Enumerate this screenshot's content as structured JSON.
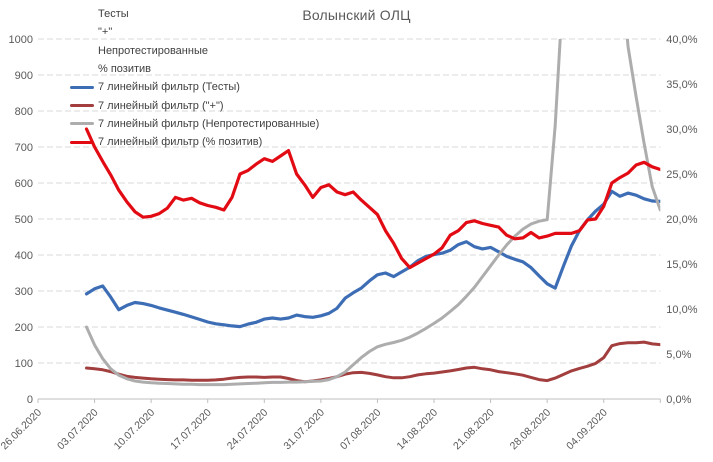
{
  "title": "Волынский ОЛЦ",
  "colors": {
    "gridline": "#d9d9d9",
    "axis_line": "#bfbfbf",
    "axis_text": "#595959",
    "legend_text": "#404040",
    "series_blue": "#3d6eb5",
    "series_darkred": "#a23f3e",
    "series_gray": "#adadad",
    "series_red": "#e30b13"
  },
  "legend": {
    "items": [
      {
        "label": "Тесты",
        "color": null
      },
      {
        "label": "\"+\"",
        "color": null
      },
      {
        "label": "Непротестированные",
        "color": null
      },
      {
        "label": "% позитив",
        "color": null
      },
      {
        "label": "7 линейный фильтр (Тесты)",
        "color": "#3d6eb5"
      },
      {
        "label": "7 линейный фильтр (\"+\")",
        "color": "#a23f3e"
      },
      {
        "label": "7 линейный фильтр (Непротестированные)",
        "color": "#adadad"
      },
      {
        "label": "7 линейный фильтр (% позитив)",
        "color": "#e30b13"
      }
    ]
  },
  "chart_data": {
    "type": "line",
    "title": "Волынский ОЛЦ",
    "grid": true,
    "legend_position": "top-left-inside",
    "x_tick_labels": [
      "26.06.2020",
      "03.07.2020",
      "10.07.2020",
      "17.07.2020",
      "24.07.2020",
      "31.07.2020",
      "07.08.2020",
      "14.08.2020",
      "21.08.2020",
      "28.08.2020",
      "04.09.2020"
    ],
    "left_axis": {
      "min": 0,
      "max": 1000,
      "step": 100,
      "labels": [
        "0",
        "100",
        "200",
        "300",
        "400",
        "500",
        "600",
        "700",
        "800",
        "900",
        "1000"
      ]
    },
    "right_axis": {
      "min": 0,
      "max": 40,
      "step": 5,
      "labels": [
        "0,0%",
        "5,0%",
        "10,0%",
        "15,0%",
        "20,0%",
        "25,0%",
        "30,0%",
        "35,0%",
        "40,0%"
      ]
    },
    "start_offset_days": 6,
    "days_per_point": 1,
    "series": [
      {
        "name": "7 линейный фильтр (Тесты)",
        "axis": "left",
        "color": "#3d6eb5",
        "width": 3.2,
        "values": [
          292,
          306,
          314,
          283,
          248,
          260,
          268,
          265,
          260,
          253,
          247,
          241,
          235,
          228,
          221,
          214,
          209,
          206,
          203,
          201,
          208,
          213,
          222,
          225,
          222,
          225,
          233,
          229,
          227,
          231,
          238,
          252,
          280,
          295,
          308,
          328,
          345,
          350,
          340,
          353,
          366,
          384,
          396,
          401,
          405,
          413,
          429,
          437,
          423,
          417,
          421,
          409,
          396,
          388,
          381,
          365,
          342,
          320,
          308,
          368,
          425,
          468,
          498,
          522,
          541,
          577,
          563,
          572,
          566,
          556,
          550,
          549
        ]
      },
      {
        "name": "7 линейный фильтр (\"+\")",
        "axis": "left",
        "color": "#a23f3e",
        "width": 3,
        "values": [
          86,
          84,
          81,
          76,
          69,
          63,
          60,
          58,
          56,
          55,
          54,
          53,
          53,
          52,
          52,
          52,
          53,
          55,
          58,
          60,
          61,
          61,
          60,
          61,
          61,
          57,
          51,
          48,
          50,
          53,
          57,
          62,
          69,
          73,
          74,
          71,
          67,
          62,
          59,
          59,
          62,
          67,
          70,
          72,
          75,
          78,
          82,
          86,
          88,
          84,
          81,
          76,
          73,
          70,
          66,
          60,
          54,
          51,
          58,
          68,
          78,
          85,
          91,
          99,
          115,
          148,
          154,
          156,
          156,
          158,
          153,
          151
        ]
      },
      {
        "name": "7 линейный фильтр (Непротестированные)",
        "axis": "left",
        "color": "#adadad",
        "width": 3,
        "values": [
          200,
          150,
          112,
          84,
          66,
          56,
          50,
          47,
          45,
          44,
          43,
          42,
          41,
          41,
          40,
          40,
          40,
          40,
          41,
          42,
          43,
          44,
          45,
          46,
          46,
          47,
          47,
          48,
          49,
          50,
          54,
          62,
          75,
          95,
          115,
          132,
          145,
          152,
          157,
          163,
          172,
          183,
          196,
          210,
          225,
          243,
          262,
          285,
          310,
          340,
          370,
          400,
          428,
          452,
          472,
          486,
          494,
          498,
          760,
          1150,
          1500,
          1750,
          1900,
          1950,
          1900,
          1750,
          1250,
          980,
          840,
          710,
          590,
          525
        ]
      },
      {
        "name": "7 линейный фильтр (% позитив)",
        "axis": "right",
        "color": "#e30b13",
        "width": 3.2,
        "values": [
          30.0,
          28.0,
          26.4,
          24.9,
          23.2,
          21.9,
          20.8,
          20.2,
          20.3,
          20.6,
          21.2,
          22.4,
          22.1,
          22.3,
          21.8,
          21.5,
          21.3,
          21.0,
          22.4,
          25.0,
          25.4,
          26.1,
          26.7,
          26.4,
          27.0,
          27.6,
          25.0,
          23.8,
          22.4,
          23.5,
          23.8,
          23.0,
          22.7,
          23.0,
          22.1,
          21.3,
          20.5,
          18.7,
          17.3,
          15.6,
          14.6,
          15.1,
          15.6,
          16.1,
          16.8,
          18.2,
          18.7,
          19.6,
          19.8,
          19.5,
          19.3,
          19.1,
          18.2,
          17.8,
          17.9,
          18.5,
          17.9,
          18.1,
          18.4,
          18.4,
          18.4,
          18.7,
          19.9,
          20.0,
          21.4,
          24.0,
          24.6,
          25.1,
          26.0,
          26.3,
          25.8,
          25.5
        ]
      }
    ]
  }
}
